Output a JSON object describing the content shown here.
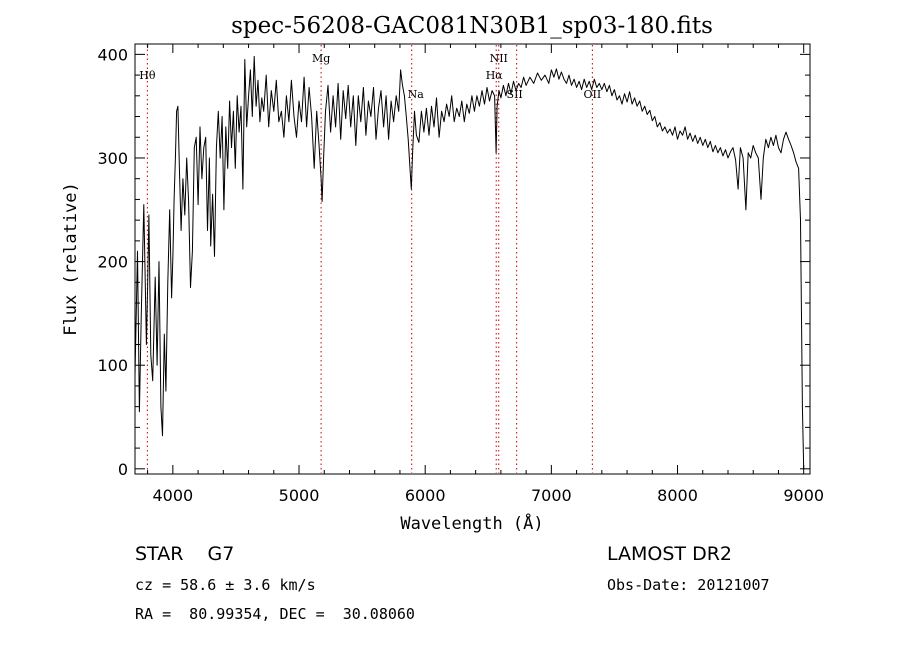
{
  "chart_data": {
    "type": "line",
    "title": "spec-56208-GAC081N30B1_sp03-180.fits",
    "xlabel": "Wavelength (Å)",
    "ylabel": "Flux (relative)",
    "xlim": [
      3700,
      9050
    ],
    "ylim": [
      -5,
      410
    ],
    "xticks": [
      4000,
      5000,
      6000,
      7000,
      8000,
      9000
    ],
    "yticks": [
      0,
      100,
      200,
      300,
      400
    ],
    "grid": false,
    "line_color": "#000000",
    "marker_color": "#cc0000",
    "series": [
      {
        "points": [
          [
            3700,
            90
          ],
          [
            3720,
            210
          ],
          [
            3735,
            55
          ],
          [
            3750,
            150
          ],
          [
            3770,
            255
          ],
          [
            3790,
            120
          ],
          [
            3800,
            175
          ],
          [
            3810,
            245
          ],
          [
            3825,
            110
          ],
          [
            3840,
            85
          ],
          [
            3860,
            185
          ],
          [
            3875,
            100
          ],
          [
            3890,
            200
          ],
          [
            3905,
            60
          ],
          [
            3918,
            32
          ],
          [
            3932,
            130
          ],
          [
            3945,
            75
          ],
          [
            3960,
            180
          ],
          [
            3975,
            250
          ],
          [
            3990,
            165
          ],
          [
            4000,
            205
          ],
          [
            4010,
            260
          ],
          [
            4020,
            300
          ],
          [
            4030,
            345
          ],
          [
            4040,
            350
          ],
          [
            4052,
            290
          ],
          [
            4065,
            230
          ],
          [
            4080,
            280
          ],
          [
            4095,
            245
          ],
          [
            4110,
            300
          ],
          [
            4125,
            258
          ],
          [
            4140,
            175
          ],
          [
            4155,
            210
          ],
          [
            4170,
            310
          ],
          [
            4185,
            320
          ],
          [
            4200,
            255
          ],
          [
            4215,
            330
          ],
          [
            4230,
            280
          ],
          [
            4245,
            310
          ],
          [
            4260,
            320
          ],
          [
            4275,
            230
          ],
          [
            4290,
            300
          ],
          [
            4300,
            215
          ],
          [
            4315,
            265
          ],
          [
            4330,
            205
          ],
          [
            4345,
            310
          ],
          [
            4360,
            345
          ],
          [
            4375,
            300
          ],
          [
            4390,
            340
          ],
          [
            4405,
            250
          ],
          [
            4420,
            330
          ],
          [
            4435,
            290
          ],
          [
            4450,
            355
          ],
          [
            4465,
            310
          ],
          [
            4480,
            345
          ],
          [
            4495,
            290
          ],
          [
            4510,
            360
          ],
          [
            4525,
            325
          ],
          [
            4540,
            350
          ],
          [
            4555,
            270
          ],
          [
            4570,
            395
          ],
          [
            4585,
            330
          ],
          [
            4600,
            360
          ],
          [
            4615,
            385
          ],
          [
            4630,
            340
          ],
          [
            4645,
            398
          ],
          [
            4660,
            350
          ],
          [
            4675,
            375
          ],
          [
            4690,
            335
          ],
          [
            4705,
            358
          ],
          [
            4720,
            345
          ],
          [
            4740,
            380
          ],
          [
            4760,
            330
          ],
          [
            4780,
            365
          ],
          [
            4800,
            345
          ],
          [
            4820,
            375
          ],
          [
            4840,
            335
          ],
          [
            4860,
            345
          ],
          [
            4880,
            320
          ],
          [
            4900,
            360
          ],
          [
            4920,
            335
          ],
          [
            4940,
            375
          ],
          [
            4960,
            340
          ],
          [
            4980,
            320
          ],
          [
            5000,
            355
          ],
          [
            5020,
            335
          ],
          [
            5040,
            378
          ],
          [
            5060,
            330
          ],
          [
            5080,
            368
          ],
          [
            5100,
            340
          ],
          [
            5120,
            290
          ],
          [
            5140,
            345
          ],
          [
            5160,
            310
          ],
          [
            5175,
            280
          ],
          [
            5183,
            258
          ],
          [
            5195,
            300
          ],
          [
            5210,
            345
          ],
          [
            5230,
            370
          ],
          [
            5250,
            325
          ],
          [
            5270,
            360
          ],
          [
            5290,
            330
          ],
          [
            5310,
            372
          ],
          [
            5330,
            318
          ],
          [
            5350,
            365
          ],
          [
            5370,
            338
          ],
          [
            5390,
            370
          ],
          [
            5410,
            330
          ],
          [
            5430,
            360
          ],
          [
            5450,
            312
          ],
          [
            5470,
            360
          ],
          [
            5490,
            335
          ],
          [
            5510,
            368
          ],
          [
            5530,
            322
          ],
          [
            5550,
            355
          ],
          [
            5570,
            340
          ],
          [
            5590,
            368
          ],
          [
            5610,
            318
          ],
          [
            5630,
            348
          ],
          [
            5650,
            365
          ],
          [
            5670,
            330
          ],
          [
            5690,
            360
          ],
          [
            5710,
            318
          ],
          [
            5730,
            355
          ],
          [
            5750,
            335
          ],
          [
            5770,
            360
          ],
          [
            5790,
            345
          ],
          [
            5805,
            385
          ],
          [
            5820,
            370
          ],
          [
            5835,
            360
          ],
          [
            5850,
            340
          ],
          [
            5865,
            318
          ],
          [
            5880,
            290
          ],
          [
            5890,
            270
          ],
          [
            5900,
            305
          ],
          [
            5915,
            345
          ],
          [
            5930,
            322
          ],
          [
            5950,
            315
          ],
          [
            5970,
            345
          ],
          [
            5990,
            325
          ],
          [
            6010,
            348
          ],
          [
            6030,
            322
          ],
          [
            6050,
            350
          ],
          [
            6070,
            330
          ],
          [
            6090,
            358
          ],
          [
            6110,
            320
          ],
          [
            6130,
            345
          ],
          [
            6150,
            335
          ],
          [
            6170,
            352
          ],
          [
            6190,
            340
          ],
          [
            6210,
            360
          ],
          [
            6230,
            335
          ],
          [
            6250,
            348
          ],
          [
            6270,
            340
          ],
          [
            6290,
            355
          ],
          [
            6310,
            335
          ],
          [
            6330,
            352
          ],
          [
            6350,
            343
          ],
          [
            6370,
            360
          ],
          [
            6390,
            345
          ],
          [
            6410,
            360
          ],
          [
            6430,
            350
          ],
          [
            6450,
            365
          ],
          [
            6470,
            352
          ],
          [
            6490,
            368
          ],
          [
            6510,
            355
          ],
          [
            6530,
            365
          ],
          [
            6550,
            360
          ],
          [
            6562,
            305
          ],
          [
            6570,
            350
          ],
          [
            6585,
            365
          ],
          [
            6600,
            358
          ],
          [
            6620,
            370
          ],
          [
            6640,
            360
          ],
          [
            6660,
            372
          ],
          [
            6680,
            362
          ],
          [
            6700,
            374
          ],
          [
            6720,
            365
          ],
          [
            6740,
            372
          ],
          [
            6760,
            368
          ],
          [
            6780,
            378
          ],
          [
            6800,
            370
          ],
          [
            6830,
            378
          ],
          [
            6860,
            372
          ],
          [
            6890,
            382
          ],
          [
            6920,
            375
          ],
          [
            6950,
            380
          ],
          [
            6980,
            372
          ],
          [
            7000,
            385
          ],
          [
            7020,
            378
          ],
          [
            7040,
            386
          ],
          [
            7060,
            376
          ],
          [
            7080,
            383
          ],
          [
            7100,
            376
          ],
          [
            7120,
            372
          ],
          [
            7140,
            380
          ],
          [
            7160,
            370
          ],
          [
            7180,
            376
          ],
          [
            7200,
            368
          ],
          [
            7220,
            374
          ],
          [
            7240,
            366
          ],
          [
            7260,
            376
          ],
          [
            7280,
            368
          ],
          [
            7300,
            374
          ],
          [
            7320,
            366
          ],
          [
            7340,
            376
          ],
          [
            7360,
            368
          ],
          [
            7380,
            372
          ],
          [
            7400,
            366
          ],
          [
            7420,
            372
          ],
          [
            7440,
            364
          ],
          [
            7460,
            370
          ],
          [
            7480,
            360
          ],
          [
            7500,
            366
          ],
          [
            7520,
            356
          ],
          [
            7540,
            360
          ],
          [
            7560,
            352
          ],
          [
            7580,
            362
          ],
          [
            7600,
            354
          ],
          [
            7620,
            364
          ],
          [
            7640,
            352
          ],
          [
            7660,
            358
          ],
          [
            7680,
            350
          ],
          [
            7700,
            355
          ],
          [
            7720,
            345
          ],
          [
            7740,
            350
          ],
          [
            7760,
            342
          ],
          [
            7780,
            346
          ],
          [
            7800,
            336
          ],
          [
            7820,
            340
          ],
          [
            7840,
            330
          ],
          [
            7860,
            334
          ],
          [
            7880,
            326
          ],
          [
            7900,
            330
          ],
          [
            7920,
            324
          ],
          [
            7940,
            328
          ],
          [
            7960,
            322
          ],
          [
            7980,
            330
          ],
          [
            8000,
            318
          ],
          [
            8020,
            326
          ],
          [
            8040,
            322
          ],
          [
            8060,
            330
          ],
          [
            8080,
            318
          ],
          [
            8100,
            324
          ],
          [
            8120,
            316
          ],
          [
            8140,
            322
          ],
          [
            8160,
            314
          ],
          [
            8180,
            320
          ],
          [
            8200,
            312
          ],
          [
            8220,
            318
          ],
          [
            8240,
            310
          ],
          [
            8260,
            316
          ],
          [
            8280,
            306
          ],
          [
            8300,
            312
          ],
          [
            8320,
            305
          ],
          [
            8340,
            310
          ],
          [
            8360,
            302
          ],
          [
            8380,
            308
          ],
          [
            8400,
            300
          ],
          [
            8420,
            306
          ],
          [
            8440,
            310
          ],
          [
            8460,
            298
          ],
          [
            8480,
            270
          ],
          [
            8498,
            310
          ],
          [
            8520,
            300
          ],
          [
            8542,
            250
          ],
          [
            8560,
            305
          ],
          [
            8580,
            300
          ],
          [
            8600,
            312
          ],
          [
            8620,
            305
          ],
          [
            8640,
            300
          ],
          [
            8662,
            260
          ],
          [
            8680,
            300
          ],
          [
            8700,
            318
          ],
          [
            8720,
            310
          ],
          [
            8740,
            320
          ],
          [
            8760,
            312
          ],
          [
            8780,
            322
          ],
          [
            8800,
            310
          ],
          [
            8820,
            305
          ],
          [
            8840,
            318
          ],
          [
            8860,
            325
          ],
          [
            8880,
            318
          ],
          [
            8900,
            312
          ],
          [
            8920,
            305
          ],
          [
            8940,
            296
          ],
          [
            8960,
            290
          ],
          [
            8975,
            240
          ],
          [
            8990,
            60
          ],
          [
            9000,
            0
          ]
        ]
      }
    ],
    "lines": [
      {
        "label": "Hθ",
        "wavelength": 3798
      },
      {
        "label": "Mg",
        "wavelength": 5175
      },
      {
        "label": "Na",
        "wavelength": 5893
      },
      {
        "label": "NII",
        "wavelength": 6583
      },
      {
        "label": "Hα",
        "wavelength": 6563
      },
      {
        "label": "SII",
        "wavelength": 6725
      },
      {
        "label": "OII",
        "wavelength": 7325
      }
    ]
  },
  "info": {
    "class_text": "STAR    G7",
    "survey": "LAMOST DR2",
    "cz": "cz = 58.6 ± 3.6 km/s",
    "obs_date": "Obs-Date: 20121007",
    "coords": "RA =  80.99354, DEC =  30.08060"
  }
}
